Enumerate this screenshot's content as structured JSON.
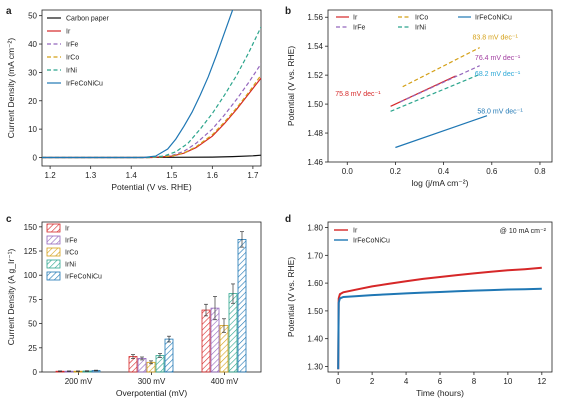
{
  "panel_labels": [
    "a",
    "b",
    "c",
    "d"
  ],
  "chart_data": [
    {
      "id": "a",
      "type": "line",
      "xlabel": "Potential (V vs. RHE)",
      "ylabel": "Current Density (mA cm⁻²)",
      "xlim": [
        1.18,
        1.72
      ],
      "ylim": [
        -3,
        52
      ],
      "xticks": [
        1.2,
        1.3,
        1.4,
        1.5,
        1.6,
        1.7
      ],
      "yticks": [
        0,
        10,
        20,
        30,
        40,
        50
      ],
      "legend": "top-left",
      "series": [
        {
          "name": "Carbon paper",
          "color": "#111111",
          "dash": "solid",
          "x": [
            1.18,
            1.4,
            1.5,
            1.6,
            1.65,
            1.7,
            1.72
          ],
          "y": [
            0,
            0,
            0.05,
            0.15,
            0.3,
            0.6,
            0.8
          ]
        },
        {
          "name": "Ir",
          "color": "#d62728",
          "dash": "solid",
          "x": [
            1.18,
            1.45,
            1.5,
            1.53,
            1.56,
            1.6,
            1.63,
            1.66,
            1.69,
            1.72
          ],
          "y": [
            0,
            0,
            0.5,
            1.5,
            3.5,
            7.5,
            12,
            17,
            22.5,
            28
          ]
        },
        {
          "name": "IrFe",
          "color": "#9467bd",
          "dash": "dashed",
          "x": [
            1.18,
            1.45,
            1.5,
            1.53,
            1.56,
            1.6,
            1.63,
            1.66,
            1.69,
            1.72
          ],
          "y": [
            0,
            0,
            0.7,
            2.2,
            5,
            10,
            15,
            20.5,
            26.5,
            33
          ]
        },
        {
          "name": "IrCo",
          "color": "#d4a017",
          "dash": "dashed",
          "x": [
            1.18,
            1.45,
            1.5,
            1.53,
            1.56,
            1.6,
            1.63,
            1.66,
            1.69,
            1.72
          ],
          "y": [
            0,
            0,
            0.5,
            1.6,
            3.8,
            8,
            12.5,
            17.5,
            23,
            29
          ]
        },
        {
          "name": "IrNi",
          "color": "#2ca58d",
          "dash": "dashed",
          "x": [
            1.18,
            1.44,
            1.48,
            1.51,
            1.54,
            1.57,
            1.6,
            1.63,
            1.66,
            1.69,
            1.72
          ],
          "y": [
            0,
            0,
            0.5,
            2,
            5,
            10,
            15.5,
            22,
            29,
            37,
            46
          ]
        },
        {
          "name": "IrFeCoNiCu",
          "color": "#1f77b4",
          "dash": "solid",
          "x": [
            1.18,
            1.43,
            1.46,
            1.49,
            1.51,
            1.53,
            1.55,
            1.57,
            1.59,
            1.61,
            1.63,
            1.65
          ],
          "y": [
            0,
            0,
            0.5,
            3,
            6.5,
            11,
            16,
            22,
            28.5,
            36,
            44,
            52
          ]
        }
      ]
    },
    {
      "id": "b",
      "type": "line",
      "xlabel": "log (j/mA cm⁻²)",
      "ylabel": "Potential (V vs. RHE)",
      "xlim": [
        -0.08,
        0.85
      ],
      "ylim": [
        1.46,
        1.565
      ],
      "xticks": [
        0.0,
        0.2,
        0.4,
        0.6,
        0.8
      ],
      "yticks": [
        1.46,
        1.48,
        1.5,
        1.52,
        1.54,
        1.56
      ],
      "legend": "top",
      "series": [
        {
          "name": "Ir",
          "color": "#d62728",
          "dash": "solid",
          "x": [
            0.18,
            0.45
          ],
          "y": [
            1.4985,
            1.5195
          ]
        },
        {
          "name": "IrFe",
          "color": "#9467bd",
          "dash": "dashed",
          "x": [
            0.22,
            0.55
          ],
          "y": [
            1.5015,
            1.5265
          ]
        },
        {
          "name": "IrCo",
          "color": "#d4a017",
          "dash": "dashed",
          "x": [
            0.23,
            0.55
          ],
          "y": [
            1.512,
            1.539
          ]
        },
        {
          "name": "IrNi",
          "color": "#2ca58d",
          "dash": "dashed",
          "x": [
            0.18,
            0.55
          ],
          "y": [
            1.495,
            1.5205
          ]
        },
        {
          "name": "IrFeCoNiCu",
          "color": "#1f77b4",
          "dash": "solid",
          "x": [
            0.2,
            0.58
          ],
          "y": [
            1.47,
            1.492
          ]
        }
      ],
      "annotations": [
        {
          "text": "83.8 mV dec⁻¹",
          "color": "#d4a017",
          "x": 0.52,
          "y": 1.5445
        },
        {
          "text": "76.4 mV dec⁻¹",
          "color": "#a13ca0",
          "x": 0.53,
          "y": 1.5305
        },
        {
          "text": "68.2 mV dec⁻¹",
          "color": "#2aa7d6",
          "x": 0.53,
          "y": 1.5195
        },
        {
          "text": "75.8 mV dec⁻¹",
          "color": "#d62728",
          "x": -0.05,
          "y": 1.5055
        },
        {
          "text": "58.0 mV dec⁻¹",
          "color": "#1f77b4",
          "x": 0.54,
          "y": 1.4935
        }
      ]
    },
    {
      "id": "c",
      "type": "bar",
      "xlabel": "Overpotential (mV)",
      "ylabel": "Current Density (A g_Ir⁻¹)",
      "categories": [
        "200 mV",
        "300 mV",
        "400 mV"
      ],
      "ylim": [
        0,
        155
      ],
      "yticks": [
        0,
        25,
        50,
        75,
        100,
        125,
        150
      ],
      "legend": "top-left",
      "series": [
        {
          "name": "Ir",
          "color": "#d62728",
          "values": [
            0.8,
            16,
            64
          ],
          "errors": [
            0.3,
            2,
            6
          ]
        },
        {
          "name": "IrFe",
          "color": "#9467bd",
          "values": [
            0.8,
            14,
            66
          ],
          "errors": [
            0.3,
            1.5,
            12
          ]
        },
        {
          "name": "IrCo",
          "color": "#d4a017",
          "values": [
            0.8,
            10,
            48
          ],
          "errors": [
            0.3,
            1.5,
            7
          ]
        },
        {
          "name": "IrNi",
          "color": "#2ca58d",
          "values": [
            1,
            17,
            81
          ],
          "errors": [
            0.3,
            2,
            10
          ]
        },
        {
          "name": "IrFeCoNiCu",
          "color": "#1f77b4",
          "values": [
            1.5,
            34,
            137
          ],
          "errors": [
            0.4,
            3,
            8
          ]
        }
      ]
    },
    {
      "id": "d",
      "type": "line",
      "xlabel": "Time (hours)",
      "ylabel": "Potential (V vs. RHE)",
      "annotation": "@ 10 mA cm⁻²",
      "xlim": [
        -0.6,
        12.6
      ],
      "ylim": [
        1.28,
        1.82
      ],
      "xticks": [
        0,
        2,
        4,
        6,
        8,
        10,
        12
      ],
      "yticks": [
        1.3,
        1.4,
        1.5,
        1.6,
        1.7,
        1.8
      ],
      "legend": "top-left",
      "series": [
        {
          "name": "Ir",
          "color": "#d62728",
          "x": [
            0,
            0.03,
            0.1,
            0.3,
            1,
            2,
            3,
            4,
            5,
            6,
            7,
            8,
            9,
            10,
            11,
            12
          ],
          "y": [
            1.29,
            1.545,
            1.56,
            1.567,
            1.576,
            1.588,
            1.598,
            1.607,
            1.615,
            1.622,
            1.629,
            1.635,
            1.641,
            1.646,
            1.65,
            1.655
          ]
        },
        {
          "name": "IrFeCoNiCu",
          "color": "#1f77b4",
          "x": [
            0,
            0.03,
            0.1,
            0.3,
            1,
            2,
            3,
            4,
            5,
            6,
            7,
            8,
            9,
            10,
            11,
            12
          ],
          "y": [
            1.29,
            1.53,
            1.545,
            1.55,
            1.553,
            1.557,
            1.56,
            1.563,
            1.566,
            1.568,
            1.571,
            1.573,
            1.575,
            1.577,
            1.578,
            1.58
          ]
        }
      ]
    }
  ]
}
